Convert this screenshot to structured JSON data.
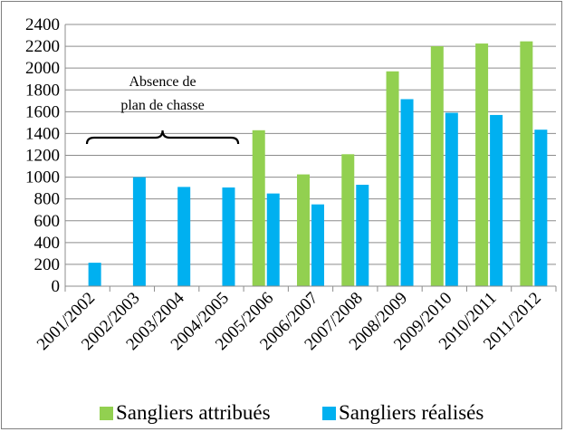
{
  "chart_data": {
    "type": "bar",
    "categories": [
      "2001/2002",
      "2002/2003",
      "2003/2004",
      "2004/2005",
      "2005/2006",
      "2006/2007",
      "2007/2008",
      "2008/2009",
      "2009/2010",
      "2010/2011",
      "2011/2012"
    ],
    "series": [
      {
        "name": "Sangliers attribués",
        "color": "#92d050",
        "values": [
          null,
          null,
          null,
          null,
          1430,
          1025,
          1210,
          1970,
          2200,
          2225,
          2245
        ]
      },
      {
        "name": "Sangliers réalisés",
        "color": "#00b0f0",
        "values": [
          215,
          1000,
          910,
          905,
          850,
          750,
          930,
          1715,
          1590,
          1570,
          1435
        ]
      }
    ],
    "yticks": [
      0,
      200,
      400,
      600,
      800,
      1000,
      1200,
      1400,
      1600,
      1800,
      2000,
      2200,
      2400
    ],
    "ylim": [
      0,
      2400
    ],
    "title": "",
    "xlabel": "",
    "ylabel": "",
    "grid": true,
    "legend_position": "bottom",
    "annotation": {
      "lines": [
        "Absence de",
        "plan de chasse"
      ],
      "category_span": [
        "2001/2002",
        "2004/2005"
      ]
    }
  }
}
